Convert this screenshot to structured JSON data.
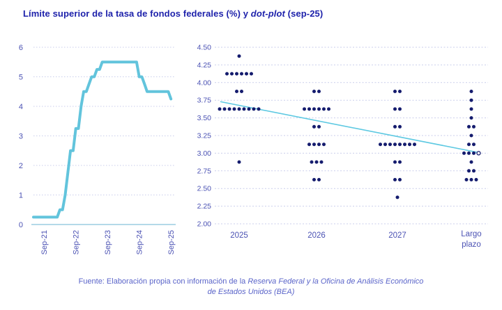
{
  "title": {
    "text_before_italic": "Límite superior de la tasa de fondos federales (%) y ",
    "italic_text": "dot-plot",
    "text_after_italic": " (sep-25)"
  },
  "footer": {
    "line1_normal": "Fuente: Elaboración propia con información de la ",
    "line1_italic": "Reserva Federal y la Oficina de Análisis Económico",
    "line2_italic": "de Estados Unidos (BEA)"
  },
  "colors": {
    "accent_line": "#62c4dc",
    "trend_line": "#5ec9e2",
    "dot": "#151c6e",
    "grid": "#c9cdeb",
    "baseline": "#b4d9e8",
    "title_text": "#1e22ab",
    "axis_text": "#4a51b3",
    "footer_text": "#5a64c9"
  },
  "chart_data": [
    {
      "type": "line",
      "name": "fed-funds-upper-limit",
      "ylabel": "",
      "xlabel": "",
      "ylim": [
        0,
        6
      ],
      "yticks": [
        "0",
        "1",
        "2",
        "3",
        "4",
        "5",
        "6"
      ],
      "xticks": [
        "Sep-21",
        "Sep-22",
        "Sep-23",
        "Sep-24",
        "Sep-25"
      ],
      "grid": "dotted-horizontal",
      "x": [
        "May-21",
        "Jun-21",
        "Jul-21",
        "Aug-21",
        "Sep-21",
        "Oct-21",
        "Nov-21",
        "Dec-21",
        "Jan-22",
        "Feb-22",
        "Mar-22",
        "Apr-22",
        "May-22",
        "Jun-22",
        "Jul-22",
        "Aug-22",
        "Sep-22",
        "Oct-22",
        "Nov-22",
        "Dec-22",
        "Jan-23",
        "Feb-23",
        "Mar-23",
        "Apr-23",
        "May-23",
        "Jun-23",
        "Jul-23",
        "Aug-23",
        "Sep-23",
        "Oct-23",
        "Nov-23",
        "Dec-23",
        "Jan-24",
        "Feb-24",
        "Mar-24",
        "Apr-24",
        "May-24",
        "Jun-24",
        "Jul-24",
        "Aug-24",
        "Sep-24",
        "Oct-24",
        "Nov-24",
        "Dec-24",
        "Jan-25",
        "Feb-25",
        "Mar-25",
        "Apr-25",
        "May-25",
        "Jun-25",
        "Jul-25",
        "Aug-25",
        "Sep-25"
      ],
      "values": [
        0.25,
        0.25,
        0.25,
        0.25,
        0.25,
        0.25,
        0.25,
        0.25,
        0.25,
        0.25,
        0.5,
        0.5,
        1.0,
        1.75,
        2.5,
        2.5,
        3.25,
        3.25,
        4.0,
        4.5,
        4.5,
        4.75,
        5.0,
        5.0,
        5.25,
        5.25,
        5.5,
        5.5,
        5.5,
        5.5,
        5.5,
        5.5,
        5.5,
        5.5,
        5.5,
        5.5,
        5.5,
        5.5,
        5.5,
        5.5,
        5.0,
        5.0,
        4.75,
        4.5,
        4.5,
        4.5,
        4.5,
        4.5,
        4.5,
        4.5,
        4.5,
        4.5,
        4.25
      ]
    },
    {
      "type": "scatter",
      "name": "dot-plot-sep-25",
      "ylim": [
        2.0,
        4.5
      ],
      "yticks": [
        "2.00",
        "2.25",
        "2.50",
        "2.75",
        "3.00",
        "3.25",
        "3.50",
        "3.75",
        "4.00",
        "4.25",
        "4.50"
      ],
      "categories": [
        "2025",
        "2026",
        "2027",
        "Largo plazo"
      ],
      "series": [
        {
          "category": "2025",
          "dots": [
            {
              "y": 4.375,
              "n": 1
            },
            {
              "y": 4.125,
              "n": 6
            },
            {
              "y": 3.875,
              "n": 2
            },
            {
              "y": 3.625,
              "n": 9
            },
            {
              "y": 2.875,
              "n": 1
            }
          ]
        },
        {
          "category": "2026",
          "dots": [
            {
              "y": 3.875,
              "n": 2
            },
            {
              "y": 3.625,
              "n": 6
            },
            {
              "y": 3.375,
              "n": 2
            },
            {
              "y": 3.125,
              "n": 4
            },
            {
              "y": 2.875,
              "n": 3
            },
            {
              "y": 2.625,
              "n": 2
            }
          ]
        },
        {
          "category": "2027",
          "dots": [
            {
              "y": 3.875,
              "n": 2
            },
            {
              "y": 3.625,
              "n": 2
            },
            {
              "y": 3.375,
              "n": 2
            },
            {
              "y": 3.125,
              "n": 8
            },
            {
              "y": 2.875,
              "n": 2
            },
            {
              "y": 2.625,
              "n": 2
            },
            {
              "y": 2.375,
              "n": 1
            }
          ]
        },
        {
          "category": "Largo plazo",
          "dots": [
            {
              "y": 3.875,
              "n": 1
            },
            {
              "y": 3.75,
              "n": 1
            },
            {
              "y": 3.625,
              "n": 1
            },
            {
              "y": 3.5,
              "n": 1
            },
            {
              "y": 3.375,
              "n": 2
            },
            {
              "y": 3.25,
              "n": 1
            },
            {
              "y": 3.125,
              "n": 2
            },
            {
              "y": 3.0,
              "n": 3,
              "open": 1
            },
            {
              "y": 2.875,
              "n": 1
            },
            {
              "y": 2.75,
              "n": 2
            },
            {
              "y": 2.625,
              "n": 3
            }
          ]
        }
      ],
      "trend_line": {
        "start_y": 3.73,
        "end_y": 3.01,
        "end_marker": "open-circle"
      }
    }
  ]
}
